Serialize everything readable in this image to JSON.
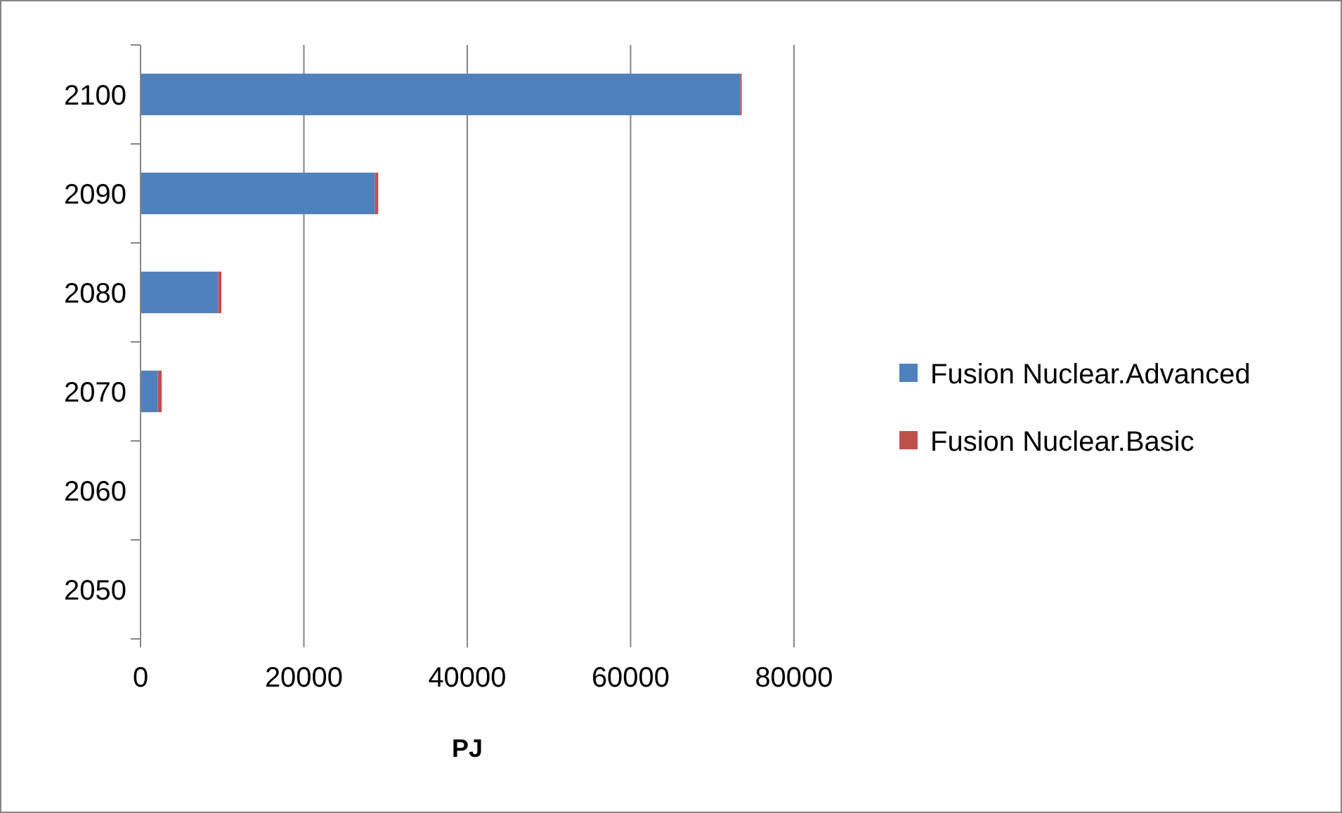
{
  "chart_data": {
    "type": "bar",
    "orientation": "horizontal",
    "stacked": true,
    "categories": [
      "2100",
      "2090",
      "2080",
      "2070",
      "2060",
      "2050"
    ],
    "series": [
      {
        "name": "Fusion Nuclear.Advanced",
        "color": "#4f81bd",
        "values": [
          73400,
          28700,
          9500,
          2100,
          0,
          0
        ]
      },
      {
        "name": "Fusion Nuclear.Basic",
        "color": "#c0504d",
        "values": [
          200,
          400,
          400,
          500,
          0,
          0
        ]
      }
    ],
    "xlim": [
      0,
      80000
    ],
    "xticks": [
      0,
      20000,
      40000,
      60000,
      80000
    ],
    "xlabel": "PJ",
    "grid": "x",
    "legend": "right"
  }
}
